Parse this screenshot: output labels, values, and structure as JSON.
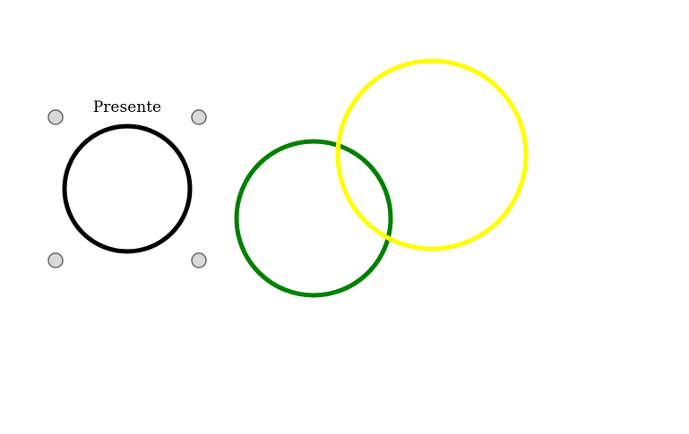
{
  "selected_shape": {
    "label": "Presente",
    "stroke_color": "#000000"
  },
  "shapes": [
    {
      "name": "green-circle",
      "stroke_color": "#008000"
    },
    {
      "name": "yellow-circle",
      "stroke_color": "#ffff00"
    }
  ],
  "handle_color": "#d9d9d9"
}
